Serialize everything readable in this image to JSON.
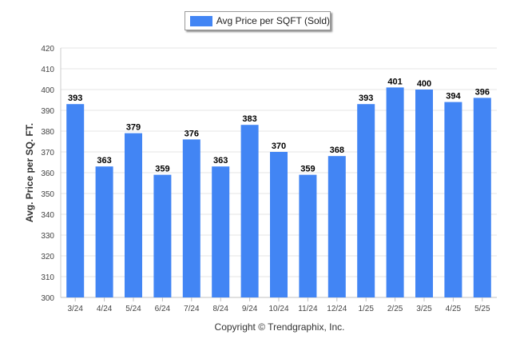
{
  "chart_data": {
    "type": "bar",
    "categories": [
      "3/24",
      "4/24",
      "5/24",
      "6/24",
      "7/24",
      "8/24",
      "9/24",
      "10/24",
      "11/24",
      "12/24",
      "1/25",
      "2/25",
      "3/25",
      "4/25",
      "5/25"
    ],
    "series": [
      {
        "name": "Avg Price per SQFT (Sold)",
        "values": [
          393,
          363,
          379,
          359,
          376,
          363,
          383,
          370,
          359,
          368,
          393,
          401,
          400,
          394,
          396
        ]
      }
    ],
    "ylabel": "Avg. Price per SQ. FT.",
    "ylim": [
      300,
      420
    ],
    "yticks": [
      300,
      310,
      320,
      330,
      340,
      350,
      360,
      370,
      380,
      390,
      400,
      410,
      420
    ],
    "grid": true,
    "legend": "top-center",
    "bar_color": "#4285f4",
    "data_labels": true
  },
  "footer": "Copyright © Trendgraphix, Inc."
}
